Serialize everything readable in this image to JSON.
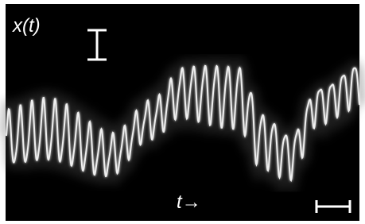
{
  "labels": {
    "signal": "x(t)",
    "time": "t→"
  }
}
